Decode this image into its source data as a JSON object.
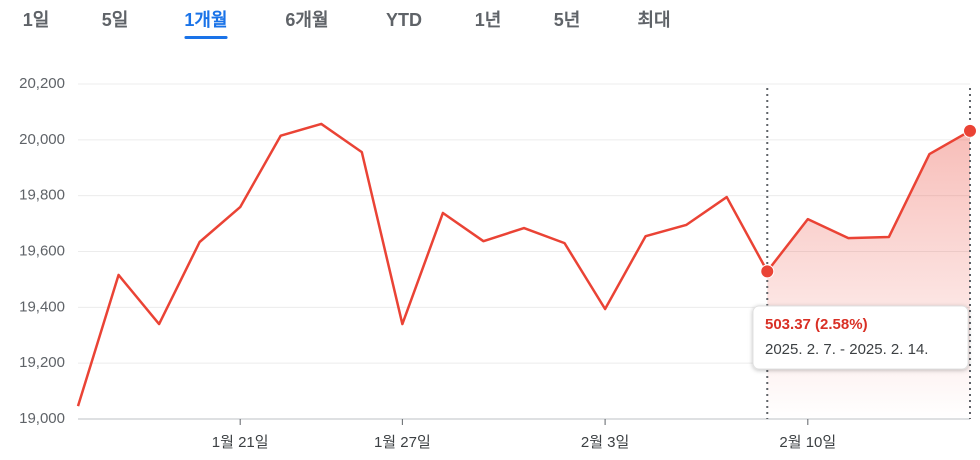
{
  "tabs": [
    "1일",
    "5일",
    "1개월",
    "6개월",
    "YTD",
    "1년",
    "5년",
    "최대"
  ],
  "selected_tab": 2,
  "chart_data": {
    "type": "line",
    "categories": [
      null,
      null,
      null,
      null,
      "1월 21일",
      null,
      null,
      null,
      "1월 27일",
      null,
      null,
      null,
      null,
      "2월 3일",
      null,
      null,
      null,
      null,
      "2월 10일",
      null,
      null,
      null,
      null
    ],
    "series": [
      {
        "color": "#ea4335",
        "values": [
          19046,
          19516,
          19340,
          19634,
          19759,
          20015,
          20057,
          19956,
          19340,
          19738,
          19637,
          19684,
          19630,
          19394,
          19655,
          19695,
          19795,
          19529,
          19716,
          19648,
          19652,
          19949,
          20032
        ]
      }
    ],
    "ylim": [
      19000,
      20200
    ],
    "yticks": [
      {
        "value": 19000,
        "label": "19,000"
      },
      {
        "value": 19200,
        "label": "19,200"
      },
      {
        "value": 19400,
        "label": "19,400"
      },
      {
        "value": 19600,
        "label": "19,600"
      },
      {
        "value": 19800,
        "label": "19,800"
      },
      {
        "value": 20000,
        "label": "20,000"
      },
      {
        "value": 20200,
        "label": "20,200"
      }
    ],
    "grid": true,
    "selection": {
      "start": 17,
      "end": 22
    },
    "tooltip": {
      "change": "503.37 (2.58%)",
      "range": "2025. 2. 7. - 2025. 2. 14."
    }
  }
}
